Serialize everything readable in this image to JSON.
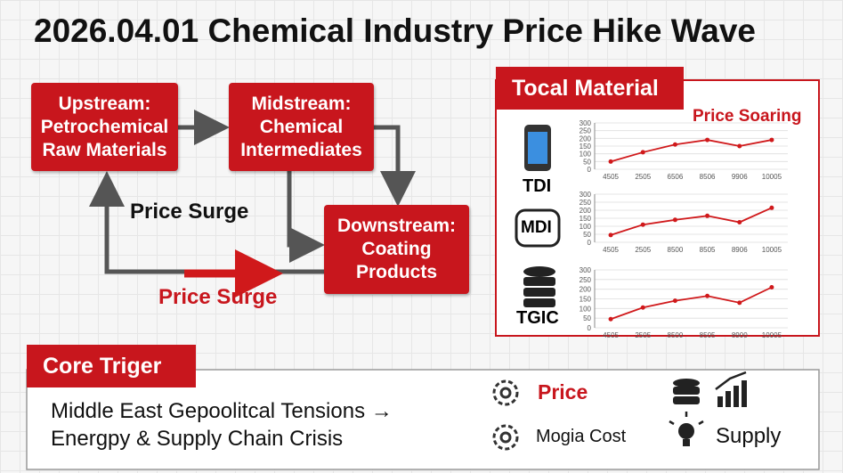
{
  "title": "2026.04.01 Chemical Industry Price Hike Wave",
  "flow": {
    "upstream": [
      "Upstream:",
      "Petrochemical",
      "Raw Materials"
    ],
    "midstream": [
      "Midstream:",
      "Chemical",
      "Intermediates"
    ],
    "downstream": [
      "Downstream:",
      "Coating",
      "Products"
    ],
    "labels": [
      "Price Surge",
      "Price Surge"
    ]
  },
  "panel": {
    "title": "Tocal Material",
    "annotation": "Price Soaring",
    "materials": [
      "TDI",
      "MDI",
      "TGIC"
    ]
  },
  "core": {
    "title": "Core Triger",
    "text": [
      "Middle East Gepoolitcal Tensions →",
      "Energpy & Supply Chain Crisis"
    ],
    "factors": [
      "Price",
      "Mogia Cost",
      "Supply"
    ]
  },
  "chart_data": [
    {
      "type": "line",
      "categories": [
        "4505",
        "2505",
        "6506",
        "8506",
        "9906",
        "10005"
      ],
      "values": [
        50,
        110,
        160,
        190,
        150,
        190
      ],
      "color": "#d0191b",
      "ylim": [
        0,
        300
      ],
      "yticks": [
        0,
        50,
        100,
        150,
        200,
        250,
        300
      ]
    },
    {
      "type": "line",
      "categories": [
        "4505",
        "2505",
        "8500",
        "8505",
        "8906",
        "10005"
      ],
      "values": [
        45,
        110,
        140,
        165,
        125,
        215
      ],
      "color": "#d0191b",
      "ylim": [
        0,
        300
      ],
      "yticks": [
        0,
        50,
        100,
        150,
        200,
        250,
        300
      ]
    },
    {
      "type": "line",
      "categories": [
        "4505",
        "2505",
        "8500",
        "8505",
        "8900",
        "10005"
      ],
      "values": [
        45,
        105,
        140,
        165,
        130,
        210
      ],
      "color": "#d0191b",
      "ylim": [
        0,
        300
      ],
      "yticks": [
        0,
        50,
        100,
        150,
        200,
        250,
        300
      ]
    }
  ]
}
